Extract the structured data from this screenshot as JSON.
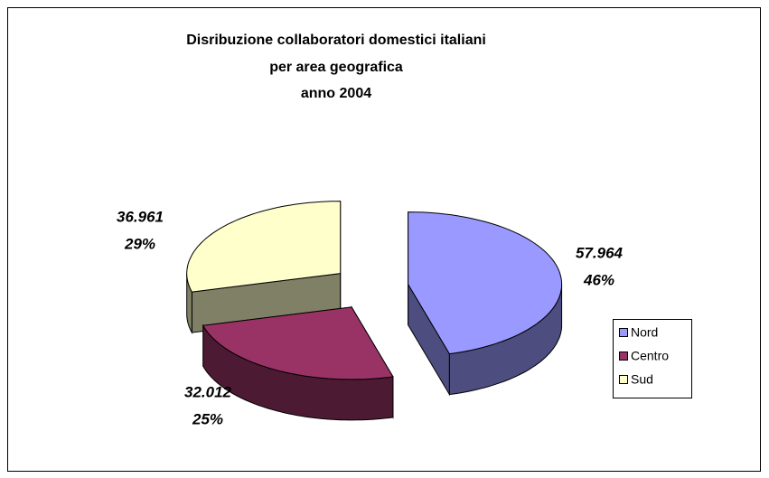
{
  "chart_data": {
    "type": "pie3d",
    "title": [
      "Disribuzione collaboratori domestici italiani",
      "per area geografica",
      "anno 2004"
    ],
    "categories": [
      "Nord",
      "Centro",
      "Sud"
    ],
    "values": [
      57964,
      32012,
      36961
    ],
    "value_labels": [
      "57.964",
      "32.012",
      "36.961"
    ],
    "percent_values": [
      46,
      25,
      29
    ],
    "percent_labels": [
      "46%",
      "25%",
      "29%"
    ],
    "colors": [
      "#9999ff",
      "#993366",
      "#ffffcc"
    ],
    "side_colors": [
      "#4d4d80",
      "#4d1a33",
      "#808066"
    ],
    "legend": "right"
  }
}
